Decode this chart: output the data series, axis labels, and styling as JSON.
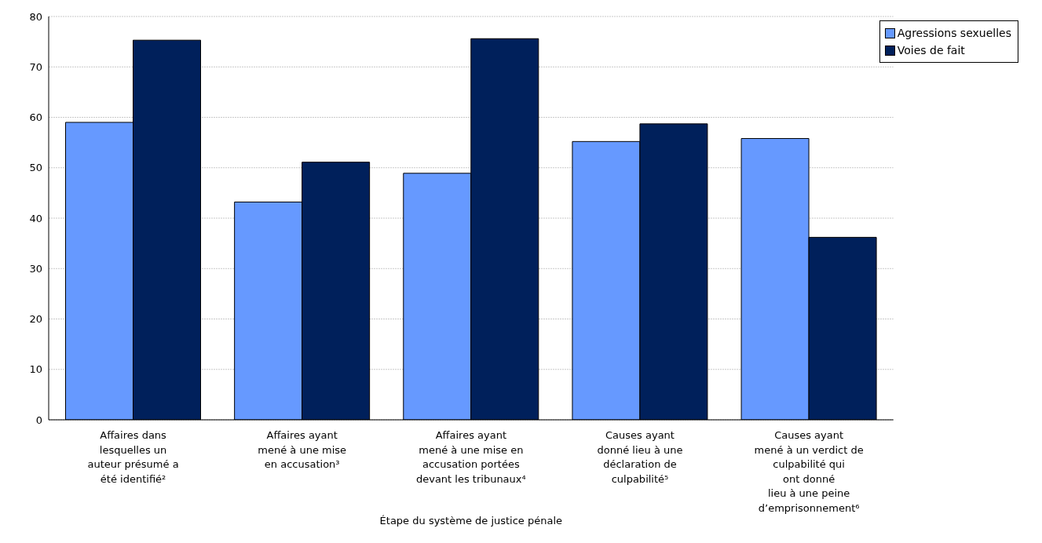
{
  "chart_data": {
    "type": "bar",
    "xlabel": "Étape du système de justice pénale",
    "categories": [
      "Affaires dans\nlesquelles un\nauteur présumé a\nété identifié²",
      "Affaires ayant\nmené à une mise\nen accusation³",
      "Affaires ayant\nmené à une mise en\naccusation portées\ndevant les tribunaux⁴",
      "Causes ayant\ndonné lieu à une\ndéclaration de\nculpabilité⁵",
      "Causes ayant\nmené à un verdict de\nculpabilité qui\nont donné\nlieu à une peine\nd’emprisonnement⁶"
    ],
    "series": [
      {
        "name": "Agressions sexuelles",
        "color": "#6699ff",
        "values": [
          59,
          43.2,
          48.9,
          55.2,
          55.8
        ]
      },
      {
        "name": "Voies de fait",
        "color": "#00205b",
        "values": [
          75.3,
          51.1,
          75.6,
          58.7,
          36.2
        ]
      }
    ],
    "ylim": [
      0,
      80
    ],
    "yticks": [
      0,
      10,
      20,
      30,
      40,
      50,
      60,
      70,
      80
    ],
    "grid": "y",
    "legend": "top right"
  }
}
